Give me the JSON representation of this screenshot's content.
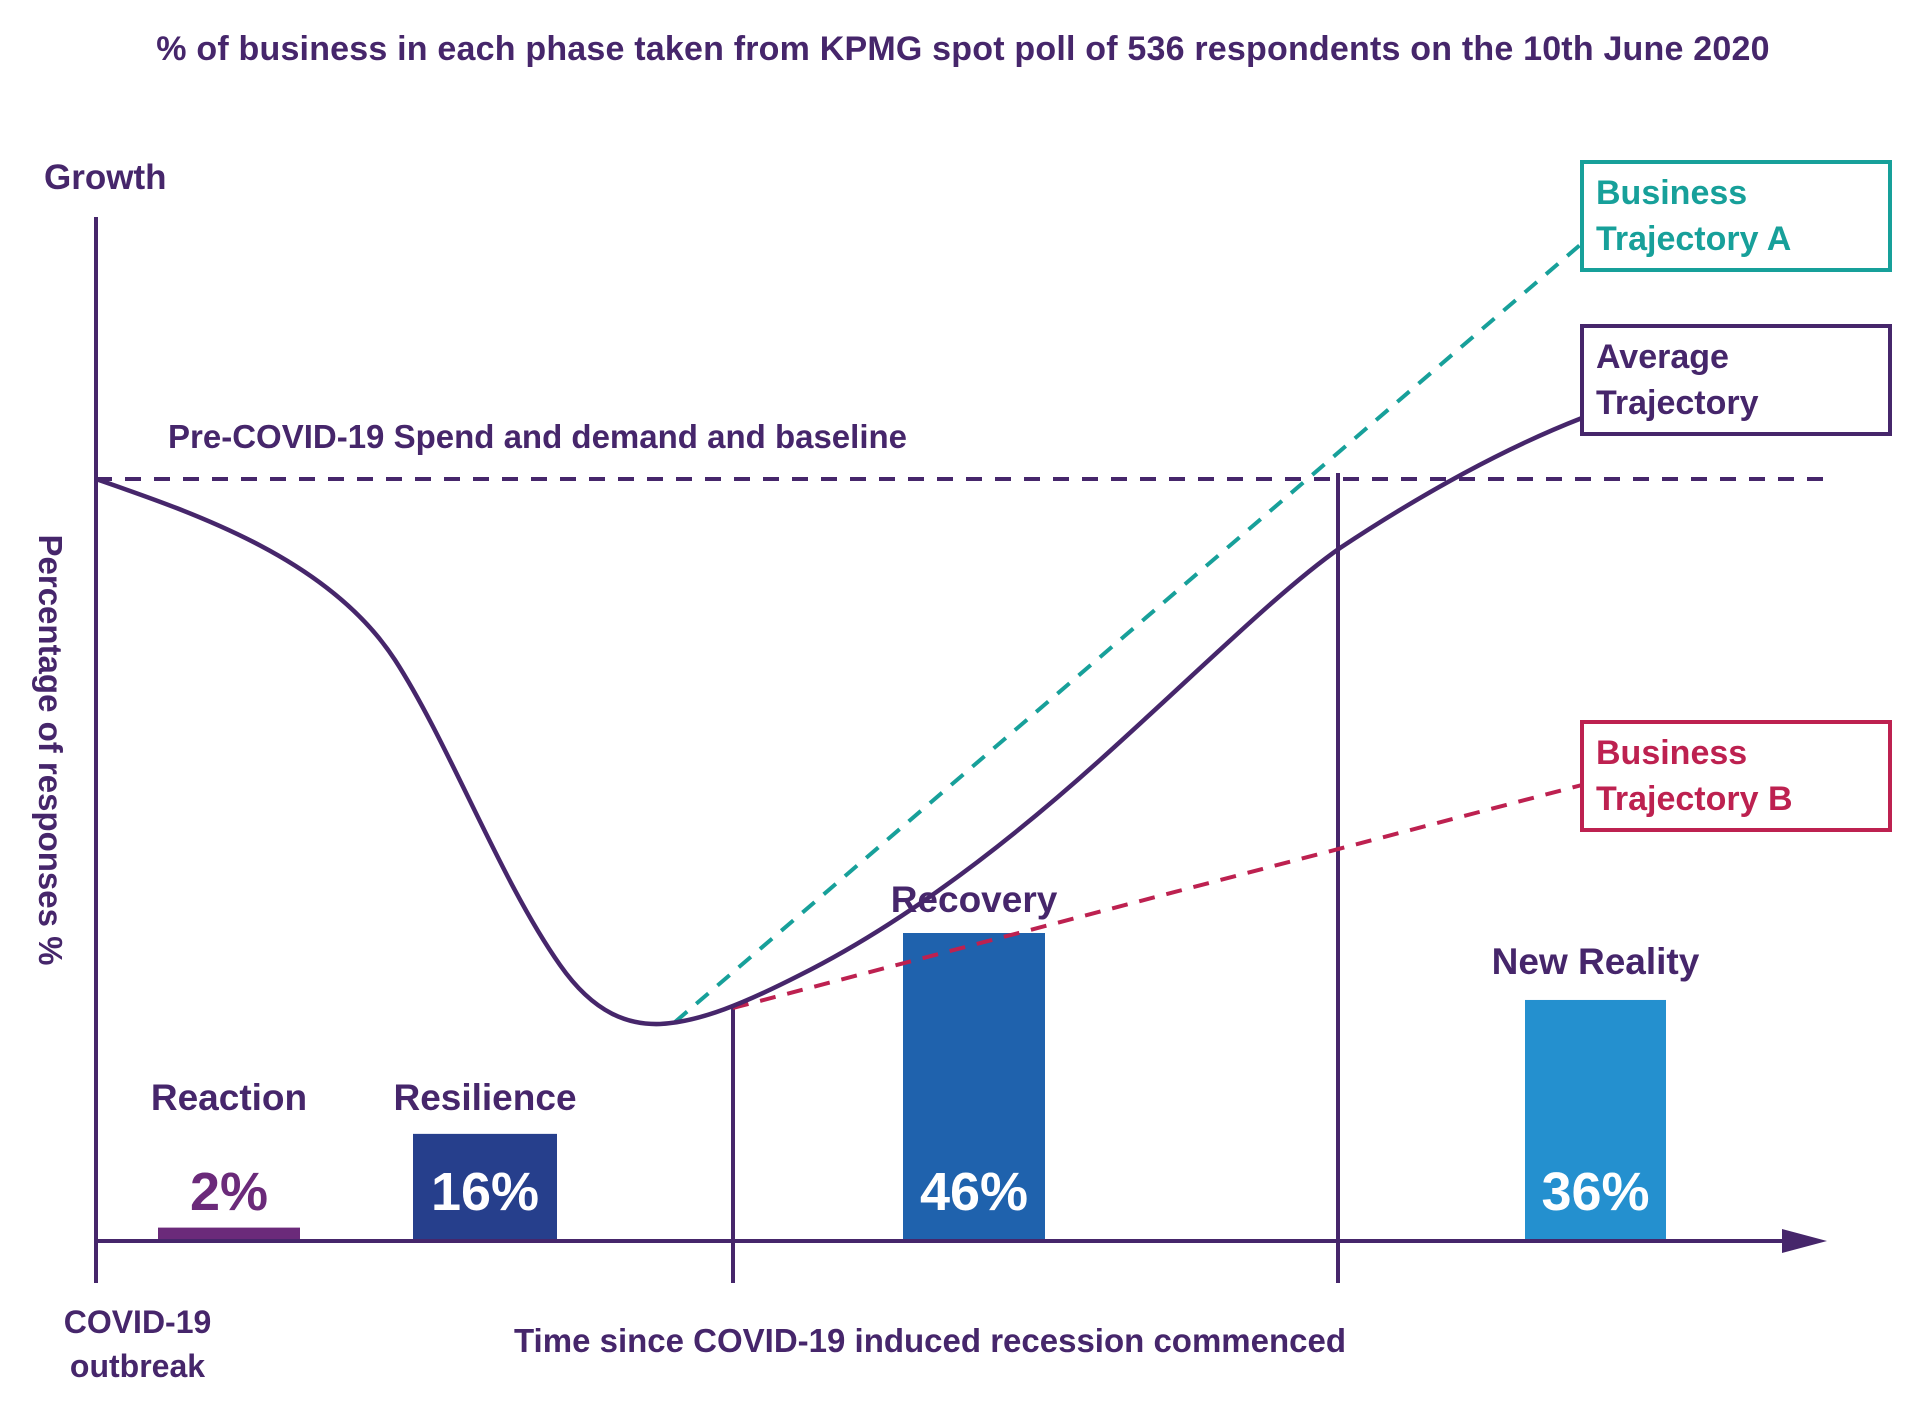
{
  "chart_data": {
    "type": "bar",
    "title": "% of business in each phase taken from KPMG spot poll of 536 respondents on the 10th June 2020",
    "ylabel": "Percentage of responses %",
    "y_axis_top_label": "Growth",
    "xlabel": "Time since COVID-19 induced recession commenced",
    "x_origin_label": [
      "COVID-19",
      "outbreak"
    ],
    "ylim": [
      0,
      100
    ],
    "grid": false,
    "categories": [
      "Reaction",
      "Resilience",
      "Recovery",
      "New Reality"
    ],
    "values": [
      2,
      16,
      46,
      36
    ],
    "value_labels": [
      "2%",
      "16%",
      "46%",
      "36%"
    ],
    "bar_colors": [
      "#6b2a7a",
      "#263f8c",
      "#1f62ad",
      "#2490cf"
    ],
    "baseline": {
      "label": "Pre-COVID-19 Spend and demand and baseline",
      "style": "dashed"
    },
    "trajectories": [
      {
        "name": "Average Trajectory",
        "label_lines": [
          "Average",
          "Trajectory"
        ],
        "style": "solid",
        "color": "#46266b"
      },
      {
        "name": "Business Trajectory A",
        "label_lines": [
          "Business",
          "Trajectory A"
        ],
        "style": "dashed",
        "color": "#17a09a"
      },
      {
        "name": "Business Trajectory B",
        "label_lines": [
          "Business",
          "Trajectory B"
        ],
        "style": "dashed",
        "color": "#bd2150"
      }
    ],
    "legend_placement": "right"
  },
  "colors": {
    "primary": "#46266b",
    "teal": "#17a09a",
    "crimson": "#bd2150"
  }
}
